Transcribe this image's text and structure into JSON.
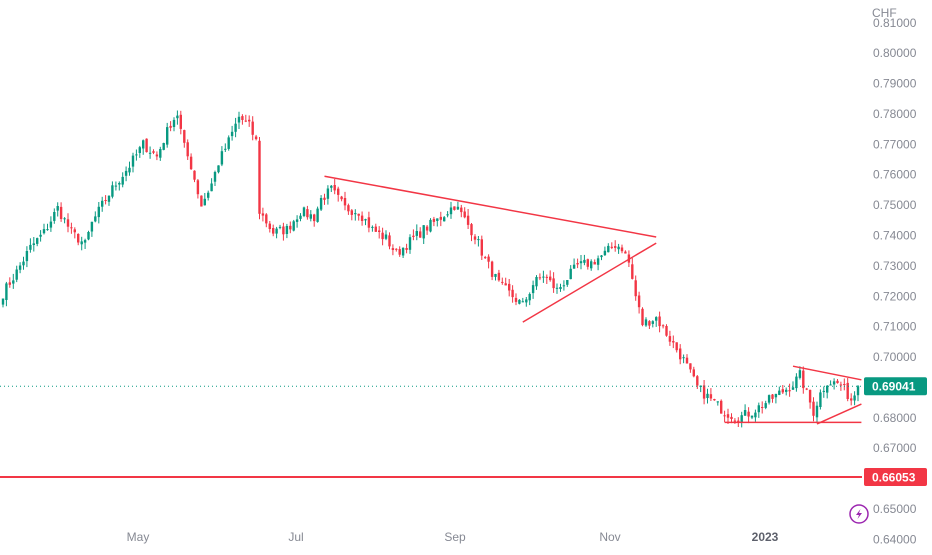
{
  "chart_data": {
    "type": "candlestick",
    "currency_label": "CHF",
    "y_ticks": [
      "0.81000",
      "0.80000",
      "0.79000",
      "0.78000",
      "0.77000",
      "0.76000",
      "0.75000",
      "0.74000",
      "0.73000",
      "0.72000",
      "0.71000",
      "0.70000",
      "0.69000",
      "0.68000",
      "0.67000",
      "0.65000",
      "0.64000"
    ],
    "x_ticks": [
      {
        "label": "May",
        "bold": false
      },
      {
        "label": "Jul",
        "bold": false
      },
      {
        "label": "Sep",
        "bold": false
      },
      {
        "label": "Nov",
        "bold": false
      },
      {
        "label": "2023",
        "bold": true
      }
    ],
    "ylim": [
      0.6365,
      0.8175
    ],
    "last_price": {
      "label": "0.69041",
      "value": 0.69041,
      "color": "#089981"
    },
    "support_level": {
      "label": "0.66053",
      "value": 0.66053,
      "color": "#f23645"
    },
    "colors": {
      "up": "#089981",
      "down": "#f23645",
      "trendline": "#f23645",
      "axis_text": "#868993"
    },
    "price_path": [
      [
        0,
        0.721
      ],
      [
        4,
        0.728
      ],
      [
        8,
        0.736
      ],
      [
        12,
        0.741
      ],
      [
        16,
        0.749
      ],
      [
        20,
        0.741
      ],
      [
        24,
        0.737
      ],
      [
        26,
        0.744
      ],
      [
        30,
        0.752
      ],
      [
        33,
        0.757
      ],
      [
        37,
        0.763
      ],
      [
        41,
        0.77
      ],
      [
        45,
        0.766
      ],
      [
        49,
        0.777
      ],
      [
        51,
        0.78
      ],
      [
        53,
        0.769
      ],
      [
        55,
        0.763
      ],
      [
        58,
        0.75
      ],
      [
        61,
        0.757
      ],
      [
        63,
        0.764
      ],
      [
        66,
        0.771
      ],
      [
        69,
        0.779
      ],
      [
        72,
        0.776
      ],
      [
        74,
        0.771
      ],
      [
        75,
        0.748
      ],
      [
        79,
        0.741
      ],
      [
        83,
        0.742
      ],
      [
        87,
        0.748
      ],
      [
        91,
        0.746
      ],
      [
        93,
        0.752
      ],
      [
        96,
        0.755
      ],
      [
        100,
        0.749
      ],
      [
        104,
        0.748
      ],
      [
        108,
        0.742
      ],
      [
        112,
        0.739
      ],
      [
        115,
        0.734
      ],
      [
        119,
        0.738
      ],
      [
        123,
        0.742
      ],
      [
        127,
        0.745
      ],
      [
        132,
        0.75
      ],
      [
        134,
        0.747
      ],
      [
        138,
        0.74
      ],
      [
        141,
        0.732
      ],
      [
        145,
        0.724
      ],
      [
        149,
        0.72
      ],
      [
        152,
        0.717
      ],
      [
        155,
        0.724
      ],
      [
        158,
        0.727
      ],
      [
        162,
        0.722
      ],
      [
        165,
        0.726
      ],
      [
        168,
        0.73
      ],
      [
        172,
        0.731
      ],
      [
        176,
        0.734
      ],
      [
        179,
        0.737
      ],
      [
        181,
        0.736
      ],
      [
        183,
        0.731
      ],
      [
        185,
        0.72
      ],
      [
        187,
        0.711
      ],
      [
        191,
        0.713
      ],
      [
        195,
        0.706
      ],
      [
        199,
        0.699
      ],
      [
        203,
        0.69
      ],
      [
        207,
        0.686
      ],
      [
        211,
        0.682
      ],
      [
        215,
        0.68
      ],
      [
        219,
        0.682
      ],
      [
        223,
        0.685
      ],
      [
        227,
        0.688
      ],
      [
        231,
        0.691
      ],
      [
        233,
        0.694
      ],
      [
        235,
        0.688
      ],
      [
        237,
        0.682
      ],
      [
        239,
        0.688
      ],
      [
        241,
        0.692
      ],
      [
        245,
        0.691
      ],
      [
        248,
        0.686
      ],
      [
        250,
        0.69
      ]
    ],
    "trendlines": [
      {
        "name": "descending-resistance-1",
        "from": [
          94,
          0.7595
        ],
        "to": [
          191,
          0.7395
        ]
      },
      {
        "name": "ascending-support-1",
        "from": [
          152,
          0.7115
        ],
        "to": [
          191,
          0.7375
        ]
      },
      {
        "name": "descending-resistance-2",
        "from": [
          231,
          0.697
        ],
        "to": [
          251,
          0.6925
        ]
      },
      {
        "name": "horizontal-support",
        "from": [
          211,
          0.6785
        ],
        "to": [
          251,
          0.6785
        ]
      },
      {
        "name": "ascending-support-2",
        "from": [
          238,
          0.678
        ],
        "to": [
          251,
          0.6845
        ]
      }
    ]
  }
}
